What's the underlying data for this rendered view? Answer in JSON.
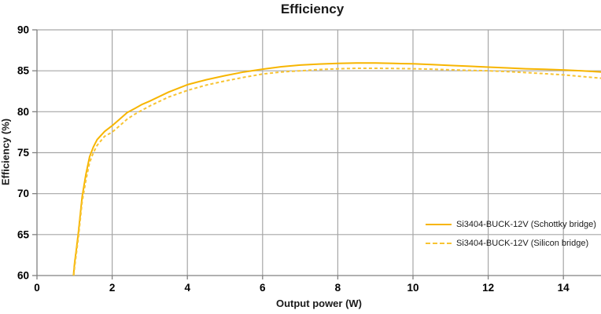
{
  "title": "Efficiency",
  "chart_data": {
    "type": "line",
    "title": "Efficiency",
    "xlabel": "Output power (W)",
    "ylabel": "Efficiency (%)",
    "xlim": [
      0,
      15
    ],
    "ylim": [
      60,
      90
    ],
    "x_ticks": [
      0,
      2,
      4,
      6,
      8,
      10,
      12,
      14
    ],
    "y_ticks": [
      60,
      65,
      70,
      75,
      80,
      85,
      90
    ],
    "grid": true,
    "legend_position": "inside-right",
    "colors": {
      "grid": "#a6a6a6",
      "axis": "#808080",
      "text": "#000000"
    },
    "series": [
      {
        "name": "Si3404-BUCK-12V (Schottky bridge)",
        "style": "solid",
        "color": "#f7b500",
        "points": [
          [
            0.97,
            60
          ],
          [
            1.0,
            61.5
          ],
          [
            1.05,
            63.3
          ],
          [
            1.1,
            65.2
          ],
          [
            1.2,
            69.6
          ],
          [
            1.3,
            72.3
          ],
          [
            1.4,
            74.5
          ],
          [
            1.5,
            75.7
          ],
          [
            1.6,
            76.6
          ],
          [
            1.8,
            77.6
          ],
          [
            2,
            78.3
          ],
          [
            2.2,
            79.1
          ],
          [
            2.4,
            79.9
          ],
          [
            2.6,
            80.4
          ],
          [
            2.8,
            80.9
          ],
          [
            3,
            81.3
          ],
          [
            3.5,
            82.4
          ],
          [
            4,
            83.3
          ],
          [
            4.5,
            83.9
          ],
          [
            5,
            84.4
          ],
          [
            5.5,
            84.85
          ],
          [
            6,
            85.2
          ],
          [
            6.5,
            85.5
          ],
          [
            7,
            85.7
          ],
          [
            7.5,
            85.82
          ],
          [
            8,
            85.9
          ],
          [
            8.5,
            85.95
          ],
          [
            9,
            85.95
          ],
          [
            9.5,
            85.9
          ],
          [
            10,
            85.85
          ],
          [
            10.5,
            85.75
          ],
          [
            11,
            85.65
          ],
          [
            11.5,
            85.55
          ],
          [
            12,
            85.45
          ],
          [
            12.5,
            85.35
          ],
          [
            13,
            85.25
          ],
          [
            13.5,
            85.18
          ],
          [
            14,
            85.1
          ],
          [
            14.5,
            85.0
          ],
          [
            15,
            84.85
          ]
        ]
      },
      {
        "name": "Si3404-BUCK-12V (Silicon bridge)",
        "style": "dashed",
        "color": "#f8c433",
        "points": [
          [
            0.98,
            60
          ],
          [
            1.0,
            61.0
          ],
          [
            1.05,
            62.8
          ],
          [
            1.1,
            64.6
          ],
          [
            1.2,
            69.0
          ],
          [
            1.3,
            71.6
          ],
          [
            1.4,
            73.8
          ],
          [
            1.5,
            75.0
          ],
          [
            1.6,
            75.9
          ],
          [
            1.8,
            77.0
          ],
          [
            2,
            77.5
          ],
          [
            2.2,
            78.3
          ],
          [
            2.4,
            79.1
          ],
          [
            2.6,
            79.7
          ],
          [
            2.8,
            80.2
          ],
          [
            3,
            80.7
          ],
          [
            3.5,
            81.8
          ],
          [
            4,
            82.6
          ],
          [
            4.5,
            83.25
          ],
          [
            5,
            83.75
          ],
          [
            5.5,
            84.2
          ],
          [
            6,
            84.6
          ],
          [
            6.5,
            84.85
          ],
          [
            7,
            85.0
          ],
          [
            7.5,
            85.15
          ],
          [
            8,
            85.25
          ],
          [
            8.5,
            85.3
          ],
          [
            9,
            85.3
          ],
          [
            9.5,
            85.28
          ],
          [
            10,
            85.25
          ],
          [
            10.5,
            85.2
          ],
          [
            11,
            85.12
          ],
          [
            11.5,
            85.05
          ],
          [
            12,
            85.0
          ],
          [
            12.5,
            84.9
          ],
          [
            13,
            84.78
          ],
          [
            13.5,
            84.65
          ],
          [
            14,
            84.5
          ],
          [
            14.5,
            84.3
          ],
          [
            15,
            84.1
          ]
        ]
      }
    ]
  }
}
